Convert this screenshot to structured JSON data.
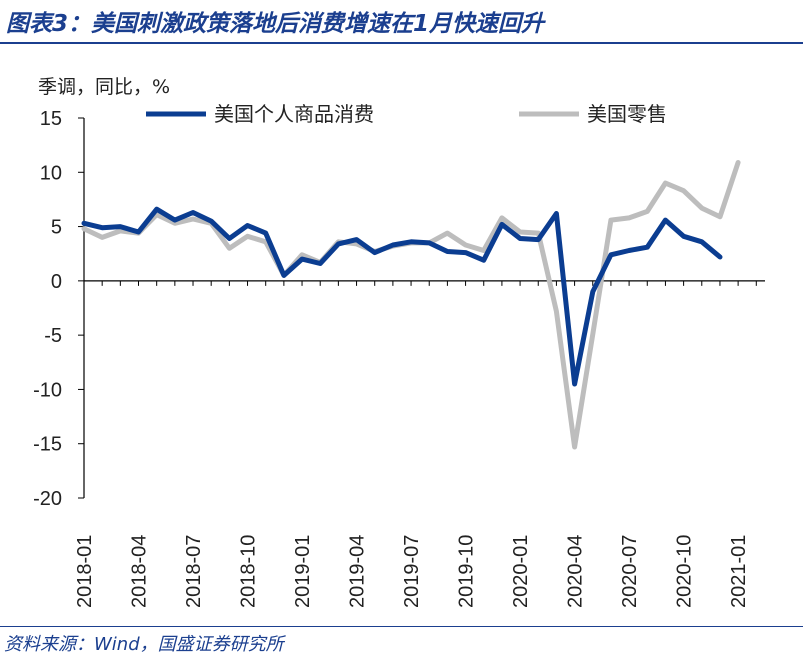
{
  "title": "图表3：美国刺激政策落地后消费增速在1月快速回升",
  "source": "资料来源：Wind，国盛证券研究所",
  "chart_data": {
    "type": "line",
    "ylabel": "季调，同比，%",
    "ylim": [
      -20,
      15
    ],
    "yticks": [
      15,
      10,
      5,
      0,
      -5,
      -10,
      -15,
      -20
    ],
    "xtick_labels": [
      "2018-01",
      "2018-04",
      "2018-07",
      "2018-10",
      "2019-01",
      "2019-04",
      "2019-07",
      "2019-10",
      "2020-01",
      "2020-04",
      "2020-07",
      "2020-10",
      "2021-01"
    ],
    "legend_position": "top",
    "grid": false,
    "series": [
      {
        "name": "美国个人商品消费",
        "color": "#0b3d91",
        "x": [
          "2018-01",
          "2018-02",
          "2018-03",
          "2018-04",
          "2018-05",
          "2018-06",
          "2018-07",
          "2018-08",
          "2018-09",
          "2018-10",
          "2018-11",
          "2018-12",
          "2019-01",
          "2019-02",
          "2019-03",
          "2019-04",
          "2019-05",
          "2019-06",
          "2019-07",
          "2019-08",
          "2019-09",
          "2019-10",
          "2019-11",
          "2019-12",
          "2020-01",
          "2020-02",
          "2020-03",
          "2020-04",
          "2020-05",
          "2020-06",
          "2020-07",
          "2020-08",
          "2020-09",
          "2020-10",
          "2020-11",
          "2020-12"
        ],
        "values": [
          5.3,
          4.9,
          5.0,
          4.5,
          6.6,
          5.6,
          6.3,
          5.5,
          3.9,
          5.1,
          4.4,
          0.5,
          2.0,
          1.6,
          3.4,
          3.8,
          2.6,
          3.3,
          3.6,
          3.5,
          2.7,
          2.6,
          1.9,
          5.2,
          3.9,
          3.8,
          6.2,
          -9.5,
          -1.0,
          2.4,
          2.8,
          3.1,
          5.6,
          4.1,
          3.6,
          2.2
        ]
      },
      {
        "name": "美国零售",
        "color": "#bdbdbd",
        "x": [
          "2018-01",
          "2018-02",
          "2018-03",
          "2018-04",
          "2018-05",
          "2018-06",
          "2018-07",
          "2018-08",
          "2018-09",
          "2018-10",
          "2018-11",
          "2018-12",
          "2019-01",
          "2019-02",
          "2019-03",
          "2019-04",
          "2019-05",
          "2019-06",
          "2019-07",
          "2019-08",
          "2019-09",
          "2019-10",
          "2019-11",
          "2019-12",
          "2020-01",
          "2020-02",
          "2020-03",
          "2020-04",
          "2020-05",
          "2020-06",
          "2020-07",
          "2020-08",
          "2020-09",
          "2020-10",
          "2020-11",
          "2020-12",
          "2021-01"
        ],
        "values": [
          4.8,
          4.0,
          4.6,
          4.4,
          6.1,
          5.3,
          5.7,
          5.3,
          3.0,
          4.1,
          3.6,
          0.5,
          2.4,
          1.7,
          3.6,
          3.4,
          2.7,
          3.2,
          3.5,
          3.5,
          4.4,
          3.3,
          2.8,
          5.8,
          4.5,
          4.4,
          -2.8,
          -15.3,
          -4.9,
          5.6,
          5.8,
          6.4,
          9.0,
          8.3,
          6.7,
          5.9,
          10.9
        ]
      }
    ]
  }
}
